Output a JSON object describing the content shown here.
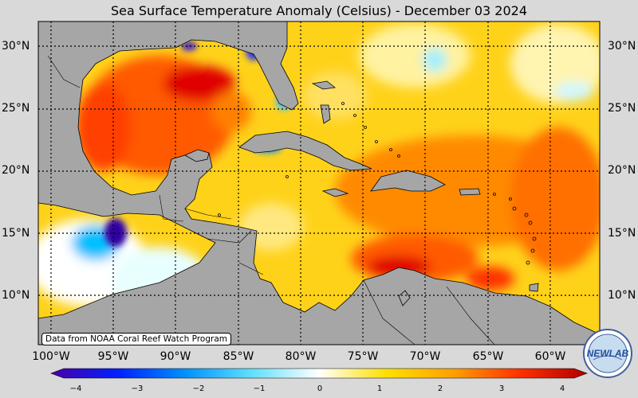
{
  "title": "Sea Surface Temperature Anomaly (Celsius) - December 03 2024",
  "credit": "Data from NOAA Coral Reef Watch Program",
  "logo_text": "NEWLAB",
  "latitude_labels": [
    "30°N",
    "25°N",
    "20°N",
    "15°N",
    "10°N"
  ],
  "longitude_labels": [
    "100°W",
    "95°W",
    "90°W",
    "85°W",
    "80°W",
    "75°W",
    "70°W",
    "65°W",
    "60°W"
  ],
  "colorbar": {
    "ticks": [
      "−4",
      "−3",
      "−2",
      "−1",
      "0",
      "1",
      "2",
      "3",
      "4"
    ],
    "min": -4,
    "max": 4,
    "colors": [
      "#4a00a8",
      "#0020ff",
      "#0090ff",
      "#60e0ff",
      "#ffffff",
      "#ffe000",
      "#ffa000",
      "#ff3000",
      "#b00000"
    ]
  },
  "colors": {
    "land": "#a6a6a6",
    "ocean_base": "#ffd21a",
    "background": "#d9d9d9"
  }
}
